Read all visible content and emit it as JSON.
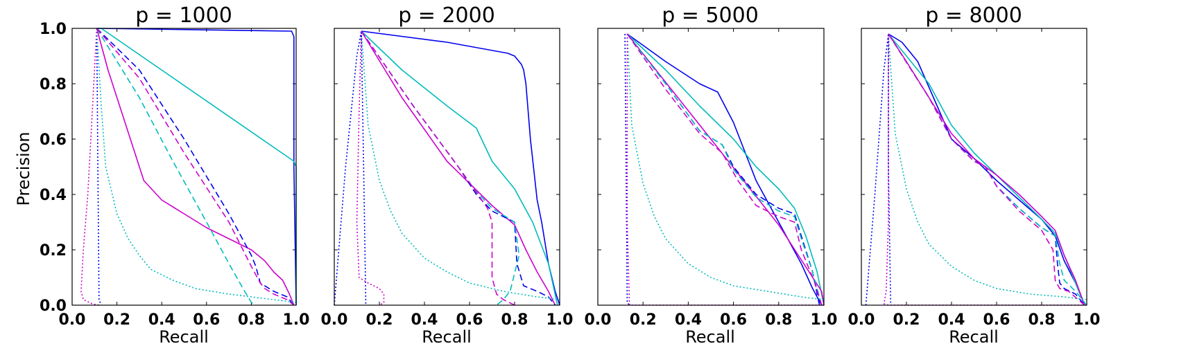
{
  "chart_data": [
    {
      "type": "line",
      "title": "p = 1000",
      "xlabel": "Recall",
      "ylabel": "Precision",
      "xlim": [
        0.0,
        1.0
      ],
      "ylim": [
        0.0,
        1.0
      ],
      "grid": false,
      "xticks": [
        "0.0",
        "0.2",
        "0.4",
        "0.6",
        "0.8",
        "1.0"
      ],
      "yticks": [
        "0.0",
        "0.2",
        "0.4",
        "0.6",
        "0.8",
        "1.0"
      ],
      "series": [
        {
          "color": "#0000ee",
          "style": "solid",
          "x": [
            0.11,
            0.12,
            0.98,
            0.99,
            0.99,
            1.0
          ],
          "y": [
            1.0,
            1.0,
            0.99,
            0.97,
            0.5,
            0.0
          ]
        },
        {
          "color": "#00bbbb",
          "style": "solid",
          "x": [
            0.11,
            0.13,
            0.99,
            1.0,
            1.0
          ],
          "y": [
            1.0,
            1.0,
            0.52,
            0.5,
            0.0
          ]
        },
        {
          "color": "#cc00cc",
          "style": "solid",
          "x": [
            0.11,
            0.16,
            0.22,
            0.32,
            0.4,
            0.5,
            0.6,
            0.7,
            0.8,
            0.86,
            0.9,
            0.94,
            0.97,
            0.99
          ],
          "y": [
            1.0,
            0.85,
            0.7,
            0.45,
            0.38,
            0.33,
            0.28,
            0.24,
            0.2,
            0.16,
            0.12,
            0.09,
            0.04,
            0.0
          ]
        },
        {
          "color": "#0000ee",
          "style": "dashed",
          "x": [
            0.11,
            0.3,
            0.5,
            0.7,
            0.8,
            0.82,
            0.84,
            0.9,
            0.96,
            0.99
          ],
          "y": [
            1.0,
            0.85,
            0.6,
            0.33,
            0.18,
            0.14,
            0.08,
            0.05,
            0.03,
            0.0
          ]
        },
        {
          "color": "#00bbbb",
          "style": "dashed",
          "x": [
            0.11,
            0.3,
            0.45,
            0.6,
            0.7,
            0.77,
            0.8,
            0.82
          ],
          "y": [
            1.0,
            0.75,
            0.52,
            0.3,
            0.15,
            0.05,
            0.01,
            0.0
          ]
        },
        {
          "color": "#cc00cc",
          "style": "dashed",
          "x": [
            0.11,
            0.3,
            0.5,
            0.7,
            0.8,
            0.84,
            0.86,
            0.9,
            0.96,
            0.99
          ],
          "y": [
            1.0,
            0.82,
            0.55,
            0.3,
            0.14,
            0.08,
            0.06,
            0.04,
            0.02,
            0.0
          ]
        },
        {
          "color": "#0000ee",
          "style": "dotted",
          "x": [
            0.11,
            0.115,
            0.12,
            0.13
          ],
          "y": [
            1.0,
            0.5,
            0.02,
            0.0
          ]
        },
        {
          "color": "#00bbbb",
          "style": "dotted",
          "x": [
            0.11,
            0.13,
            0.15,
            0.2,
            0.25,
            0.3,
            0.35,
            0.45,
            0.55,
            0.7,
            0.85,
            1.0
          ],
          "y": [
            1.0,
            0.72,
            0.5,
            0.33,
            0.24,
            0.18,
            0.13,
            0.09,
            0.06,
            0.04,
            0.025,
            0.01
          ]
        },
        {
          "color": "#cc00cc",
          "style": "dotted",
          "x": [
            0.11,
            0.09,
            0.07,
            0.05,
            0.04,
            0.05,
            0.09,
            0.12
          ],
          "y": [
            1.0,
            0.7,
            0.4,
            0.2,
            0.05,
            0.02,
            0.005,
            0.0
          ]
        }
      ]
    },
    {
      "type": "line",
      "title": "p = 2000",
      "xlabel": "Recall",
      "ylabel": "",
      "xlim": [
        0.0,
        1.0
      ],
      "ylim": [
        0.0,
        1.0
      ],
      "grid": false,
      "xticks": [
        "0.0",
        "0.2",
        "0.4",
        "0.6",
        "0.8",
        "1.0"
      ],
      "yticks": [
        "0.0",
        "0.2",
        "0.4",
        "0.6",
        "0.8",
        "1.0"
      ],
      "series": [
        {
          "color": "#0000ee",
          "style": "solid",
          "x": [
            0.12,
            0.5,
            0.77,
            0.8,
            0.83,
            0.84,
            0.85,
            0.87,
            0.9,
            0.92,
            0.95,
            0.98,
            1.0
          ],
          "y": [
            0.99,
            0.95,
            0.91,
            0.9,
            0.87,
            0.85,
            0.8,
            0.6,
            0.38,
            0.3,
            0.15,
            0.05,
            0.0
          ]
        },
        {
          "color": "#00bbbb",
          "style": "solid",
          "x": [
            0.12,
            0.3,
            0.5,
            0.63,
            0.7,
            0.8,
            0.88,
            0.95,
            0.99
          ],
          "y": [
            0.99,
            0.85,
            0.72,
            0.64,
            0.52,
            0.42,
            0.3,
            0.15,
            0.0
          ]
        },
        {
          "color": "#cc00cc",
          "style": "solid",
          "x": [
            0.12,
            0.3,
            0.5,
            0.6,
            0.7,
            0.8,
            0.85,
            0.9,
            0.95,
            0.98
          ],
          "y": [
            0.99,
            0.75,
            0.52,
            0.44,
            0.36,
            0.29,
            0.2,
            0.12,
            0.05,
            0.0
          ]
        },
        {
          "color": "#0000ee",
          "style": "dashed",
          "x": [
            0.12,
            0.35,
            0.55,
            0.63,
            0.7,
            0.8,
            0.81,
            0.84,
            0.9,
            0.95,
            0.98
          ],
          "y": [
            0.99,
            0.72,
            0.5,
            0.4,
            0.34,
            0.3,
            0.15,
            0.07,
            0.05,
            0.03,
            0.0
          ]
        },
        {
          "color": "#00bbbb",
          "style": "dashed",
          "x": [
            0.12,
            0.35,
            0.55,
            0.62,
            0.7,
            0.8,
            0.82,
            0.78,
            0.75,
            0.72
          ],
          "y": [
            0.99,
            0.72,
            0.5,
            0.42,
            0.35,
            0.3,
            0.18,
            0.05,
            0.02,
            0.0
          ]
        },
        {
          "color": "#cc00cc",
          "style": "dashed",
          "x": [
            0.12,
            0.35,
            0.55,
            0.62,
            0.68,
            0.7,
            0.7,
            0.72,
            0.75,
            0.8
          ],
          "y": [
            0.99,
            0.72,
            0.5,
            0.42,
            0.35,
            0.3,
            0.1,
            0.04,
            0.02,
            0.0
          ]
        },
        {
          "color": "#0000ee",
          "style": "dotted",
          "x": [
            0.0,
            0.05,
            0.1,
            0.12,
            0.13,
            0.14
          ],
          "y": [
            0.0,
            0.5,
            0.9,
            0.99,
            0.5,
            0.0
          ]
        },
        {
          "color": "#00bbbb",
          "style": "dotted",
          "x": [
            0.12,
            0.15,
            0.2,
            0.25,
            0.3,
            0.4,
            0.5,
            0.6,
            0.75,
            0.9,
            1.0
          ],
          "y": [
            0.99,
            0.65,
            0.45,
            0.34,
            0.26,
            0.17,
            0.12,
            0.08,
            0.05,
            0.03,
            0.02
          ]
        },
        {
          "color": "#cc00cc",
          "style": "dotted",
          "x": [
            0.12,
            0.11,
            0.1,
            0.11,
            0.15,
            0.2,
            0.22,
            0.22,
            0.2
          ],
          "y": [
            0.99,
            0.7,
            0.3,
            0.1,
            0.08,
            0.06,
            0.04,
            0.01,
            0.0
          ]
        }
      ]
    },
    {
      "type": "line",
      "title": "p = 5000",
      "xlabel": "Recall",
      "ylabel": "",
      "xlim": [
        0.0,
        1.0
      ],
      "ylim": [
        0.0,
        1.0
      ],
      "grid": false,
      "xticks": [
        "0.0",
        "0.2",
        "0.4",
        "0.6",
        "0.8",
        "1.0"
      ],
      "yticks": [
        "0.0",
        "0.2",
        "0.4",
        "0.6",
        "0.8",
        "1.0"
      ],
      "series": [
        {
          "color": "#0000ee",
          "style": "solid",
          "x": [
            0.13,
            0.3,
            0.45,
            0.53,
            0.6,
            0.7,
            0.8,
            0.9,
            0.95,
            0.99
          ],
          "y": [
            0.98,
            0.88,
            0.8,
            0.77,
            0.66,
            0.45,
            0.3,
            0.15,
            0.06,
            0.0
          ]
        },
        {
          "color": "#00bbbb",
          "style": "solid",
          "x": [
            0.13,
            0.3,
            0.45,
            0.6,
            0.7,
            0.8,
            0.87,
            0.92,
            0.97,
            1.0
          ],
          "y": [
            0.98,
            0.85,
            0.72,
            0.6,
            0.5,
            0.42,
            0.35,
            0.25,
            0.12,
            0.0
          ]
        },
        {
          "color": "#cc00cc",
          "style": "solid",
          "x": [
            0.13,
            0.5,
            0.8,
            0.99,
            1.0
          ],
          "y": [
            0.98,
            0.6,
            0.29,
            0.05,
            0.0
          ]
        },
        {
          "color": "#0000ee",
          "style": "dashed",
          "x": [
            0.13,
            0.3,
            0.45,
            0.55,
            0.6,
            0.7,
            0.8,
            0.87,
            0.9,
            0.95,
            0.98
          ],
          "y": [
            0.98,
            0.8,
            0.63,
            0.58,
            0.5,
            0.4,
            0.35,
            0.33,
            0.25,
            0.12,
            0.0
          ]
        },
        {
          "color": "#00bbbb",
          "style": "dashed",
          "x": [
            0.13,
            0.3,
            0.45,
            0.55,
            0.6,
            0.7,
            0.8,
            0.87,
            0.9,
            0.95,
            0.99
          ],
          "y": [
            0.98,
            0.8,
            0.63,
            0.58,
            0.49,
            0.39,
            0.34,
            0.32,
            0.24,
            0.12,
            0.0
          ]
        },
        {
          "color": "#cc00cc",
          "style": "dashed",
          "x": [
            0.13,
            0.3,
            0.45,
            0.55,
            0.62,
            0.7,
            0.8,
            0.87,
            0.9,
            0.96,
            0.99
          ],
          "y": [
            0.98,
            0.78,
            0.62,
            0.55,
            0.45,
            0.36,
            0.32,
            0.3,
            0.2,
            0.08,
            0.0
          ]
        },
        {
          "color": "#0000ee",
          "style": "dotted",
          "x": [
            0.12,
            0.125,
            0.13,
            0.14
          ],
          "y": [
            0.98,
            0.5,
            0.01,
            0.0
          ]
        },
        {
          "color": "#00bbbb",
          "style": "dotted",
          "x": [
            0.13,
            0.15,
            0.2,
            0.25,
            0.3,
            0.4,
            0.5,
            0.6,
            0.75,
            0.9,
            1.0
          ],
          "y": [
            0.98,
            0.65,
            0.44,
            0.32,
            0.24,
            0.15,
            0.1,
            0.07,
            0.05,
            0.03,
            0.02
          ]
        },
        {
          "color": "#cc00cc",
          "style": "dotted",
          "x": [
            0.13,
            0.13,
            0.14,
            0.2,
            0.6,
            1.0
          ],
          "y": [
            0.98,
            0.3,
            0.0,
            0.0,
            0.0,
            0.0
          ]
        }
      ]
    },
    {
      "type": "line",
      "title": "p = 8000",
      "xlabel": "Recall",
      "ylabel": "",
      "xlim": [
        0.0,
        1.0
      ],
      "ylim": [
        0.0,
        1.0
      ],
      "grid": false,
      "xticks": [
        "0.0",
        "0.2",
        "0.4",
        "0.6",
        "0.8",
        "1.0"
      ],
      "yticks": [
        "0.0",
        "0.2",
        "0.4",
        "0.6",
        "0.8",
        "1.0"
      ],
      "series": [
        {
          "color": "#0000ee",
          "style": "solid",
          "x": [
            0.12,
            0.18,
            0.25,
            0.32,
            0.4,
            0.5,
            0.6,
            0.7,
            0.8,
            0.86,
            0.9,
            0.95,
            0.99
          ],
          "y": [
            0.98,
            0.95,
            0.88,
            0.75,
            0.6,
            0.53,
            0.45,
            0.38,
            0.31,
            0.25,
            0.16,
            0.08,
            0.0
          ]
        },
        {
          "color": "#00bbbb",
          "style": "solid",
          "x": [
            0.12,
            0.2,
            0.3,
            0.4,
            0.5,
            0.6,
            0.7,
            0.8,
            0.86,
            0.9,
            0.95,
            0.99
          ],
          "y": [
            0.98,
            0.9,
            0.8,
            0.65,
            0.55,
            0.47,
            0.39,
            0.31,
            0.26,
            0.18,
            0.08,
            0.0
          ]
        },
        {
          "color": "#cc00cc",
          "style": "solid",
          "x": [
            0.12,
            0.2,
            0.3,
            0.4,
            0.5,
            0.6,
            0.7,
            0.8,
            0.86,
            0.9,
            0.95,
            0.99
          ],
          "y": [
            0.98,
            0.88,
            0.75,
            0.62,
            0.53,
            0.47,
            0.4,
            0.32,
            0.27,
            0.18,
            0.09,
            0.0
          ]
        },
        {
          "color": "#0000ee",
          "style": "dashed",
          "x": [
            0.12,
            0.3,
            0.4,
            0.5,
            0.55,
            0.6,
            0.7,
            0.8,
            0.86,
            0.87,
            0.88,
            0.9,
            0.95,
            0.99
          ],
          "y": [
            0.98,
            0.75,
            0.6,
            0.52,
            0.5,
            0.43,
            0.35,
            0.28,
            0.25,
            0.15,
            0.08,
            0.06,
            0.04,
            0.0
          ]
        },
        {
          "color": "#00bbbb",
          "style": "dashed",
          "x": [
            0.12,
            0.3,
            0.4,
            0.5,
            0.55,
            0.6,
            0.7,
            0.8,
            0.86,
            0.88,
            0.9,
            0.95,
            1.0
          ],
          "y": [
            0.98,
            0.75,
            0.6,
            0.52,
            0.5,
            0.43,
            0.35,
            0.28,
            0.25,
            0.15,
            0.09,
            0.05,
            0.0
          ]
        },
        {
          "color": "#cc00cc",
          "style": "dashed",
          "x": [
            0.12,
            0.3,
            0.4,
            0.5,
            0.55,
            0.6,
            0.7,
            0.8,
            0.85,
            0.86,
            0.88,
            0.92,
            0.99
          ],
          "y": [
            0.98,
            0.75,
            0.6,
            0.52,
            0.5,
            0.43,
            0.34,
            0.27,
            0.2,
            0.09,
            0.06,
            0.05,
            0.0
          ]
        },
        {
          "color": "#0000ee",
          "style": "dotted",
          "x": [
            0.02,
            0.06,
            0.1,
            0.12,
            0.12,
            0.13
          ],
          "y": [
            0.0,
            0.4,
            0.85,
            0.98,
            0.5,
            0.0
          ]
        },
        {
          "color": "#00bbbb",
          "style": "dotted",
          "x": [
            0.12,
            0.15,
            0.2,
            0.25,
            0.3,
            0.4,
            0.5,
            0.6,
            0.75,
            0.9,
            1.0
          ],
          "y": [
            0.98,
            0.62,
            0.42,
            0.3,
            0.22,
            0.14,
            0.09,
            0.06,
            0.04,
            0.03,
            0.02
          ]
        },
        {
          "color": "#cc00cc",
          "style": "dotted",
          "x": [
            0.12,
            0.12,
            0.11,
            0.1,
            0.12,
            0.2,
            0.6,
            1.0
          ],
          "y": [
            0.98,
            0.3,
            0.05,
            0.005,
            0.0,
            0.0,
            0.0,
            0.0
          ]
        }
      ]
    }
  ]
}
